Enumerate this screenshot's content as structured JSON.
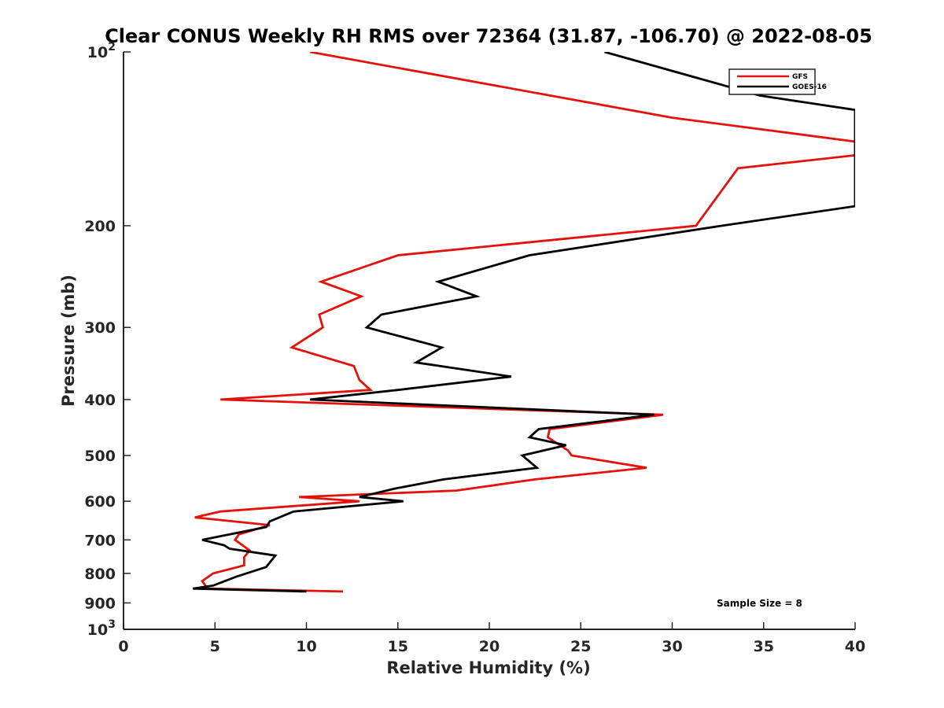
{
  "chart_data": {
    "type": "line",
    "title": "Clear CONUS Weekly RH RMS over 72364 (31.87, -106.70) @ 2022-08-05",
    "xlabel": "Relative Humidity (%)",
    "ylabel": "Pressure (mb)",
    "xlim": [
      0,
      40
    ],
    "ylim": [
      100,
      1000
    ],
    "yscale": "log",
    "y_reversed": true,
    "grid": false,
    "legend_position": "top-right",
    "x_ticks": [
      "0",
      "5",
      "10",
      "15",
      "20",
      "25",
      "30",
      "35",
      "40"
    ],
    "y_ticks": [
      {
        "value": 100,
        "base": "10",
        "exp": "2"
      },
      {
        "value": 200,
        "label": "200"
      },
      {
        "value": 300,
        "label": "300"
      },
      {
        "value": 400,
        "label": "400"
      },
      {
        "value": 500,
        "label": "500"
      },
      {
        "value": 600,
        "label": "600"
      },
      {
        "value": 700,
        "label": "700"
      },
      {
        "value": 800,
        "label": "800"
      },
      {
        "value": 900,
        "label": "900"
      },
      {
        "value": 1000,
        "base": "10",
        "exp": "3"
      }
    ],
    "series": [
      {
        "name": "GFS",
        "color": "#e3120b",
        "points": [
          [
            10.2,
            100
          ],
          [
            30.0,
            130
          ],
          [
            40.0,
            143
          ],
          [
            40.0,
            151
          ],
          [
            33.6,
            159
          ],
          [
            31.3,
            200
          ],
          [
            15.0,
            225
          ],
          [
            10.8,
            250
          ],
          [
            13.0,
            265
          ],
          [
            10.7,
            285
          ],
          [
            10.9,
            300
          ],
          [
            9.2,
            325
          ],
          [
            12.6,
            350
          ],
          [
            12.9,
            370
          ],
          [
            13.5,
            385
          ],
          [
            5.3,
            400
          ],
          [
            29.5,
            425
          ],
          [
            23.3,
            450
          ],
          [
            23.2,
            465
          ],
          [
            24.3,
            490
          ],
          [
            24.5,
            500
          ],
          [
            28.6,
            525
          ],
          [
            22.5,
            550
          ],
          [
            18.2,
            575
          ],
          [
            9.6,
            590
          ],
          [
            12.9,
            600
          ],
          [
            5.3,
            625
          ],
          [
            3.9,
            640
          ],
          [
            8.0,
            660
          ],
          [
            6.3,
            685
          ],
          [
            6.1,
            700
          ],
          [
            6.9,
            730
          ],
          [
            6.6,
            750
          ],
          [
            6.6,
            775
          ],
          [
            4.9,
            800
          ],
          [
            4.3,
            825
          ],
          [
            4.6,
            850
          ],
          [
            12.0,
            860
          ]
        ]
      },
      {
        "name": "GOES-16",
        "color": "#000000",
        "points": [
          [
            26.3,
            100
          ],
          [
            34.8,
            119
          ],
          [
            40.0,
            126
          ],
          [
            40.0,
            185
          ],
          [
            32.7,
            200
          ],
          [
            22.2,
            225
          ],
          [
            17.2,
            250
          ],
          [
            19.3,
            265
          ],
          [
            14.1,
            285
          ],
          [
            13.3,
            300
          ],
          [
            17.4,
            325
          ],
          [
            16.0,
            345
          ],
          [
            21.2,
            365
          ],
          [
            15.0,
            385
          ],
          [
            10.2,
            400
          ],
          [
            29.0,
            425
          ],
          [
            22.7,
            450
          ],
          [
            22.2,
            465
          ],
          [
            24.2,
            480
          ],
          [
            21.8,
            500
          ],
          [
            22.6,
            525
          ],
          [
            17.5,
            550
          ],
          [
            14.9,
            570
          ],
          [
            12.9,
            590
          ],
          [
            15.3,
            600
          ],
          [
            9.3,
            625
          ],
          [
            8.0,
            650
          ],
          [
            7.8,
            665
          ],
          [
            4.3,
            700
          ],
          [
            5.5,
            715
          ],
          [
            5.8,
            725
          ],
          [
            8.3,
            745
          ],
          [
            7.8,
            780
          ],
          [
            6.2,
            810
          ],
          [
            4.9,
            840
          ],
          [
            3.8,
            850
          ],
          [
            10.0,
            860
          ]
        ]
      }
    ],
    "legend": [
      "GFS",
      "GOES-16"
    ],
    "annotation": "Sample Size = 8"
  }
}
